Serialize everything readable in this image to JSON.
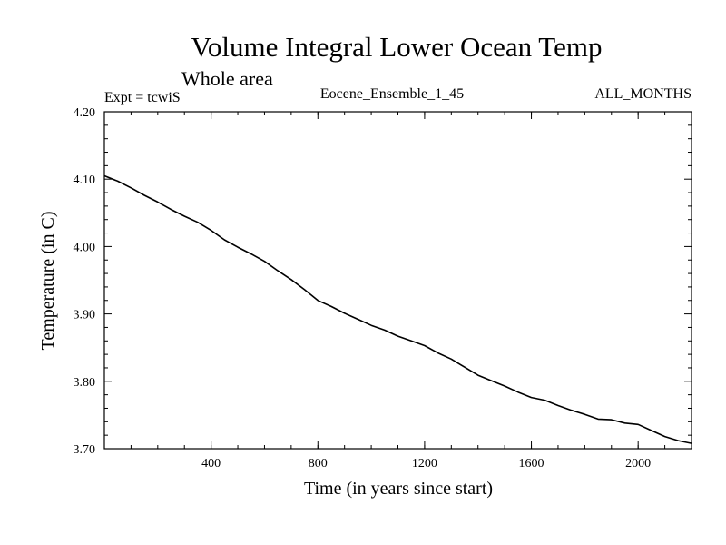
{
  "chart_data": {
    "type": "line",
    "title": "Volume Integral Lower Ocean Temp",
    "subtitle": "Whole area",
    "header_left": "Expt = tcwiS",
    "header_center": "Eocene_Ensemble_1_45",
    "header_right": "ALL_MONTHS",
    "xlabel": "Time (in years since start)",
    "ylabel": "Temperature (in C)",
    "xlim": [
      0,
      2200
    ],
    "ylim": [
      3.7,
      4.2
    ],
    "x_ticks": [
      400,
      800,
      1200,
      1600,
      2000
    ],
    "x_tick_labels": [
      "400",
      "800",
      "1200",
      "1600",
      "2000"
    ],
    "y_ticks": [
      3.7,
      3.8,
      3.9,
      4.0,
      4.1,
      4.2
    ],
    "y_tick_labels": [
      "3.70",
      "3.80",
      "3.90",
      "4.00",
      "4.10",
      "4.20"
    ],
    "grid": false,
    "series": [
      {
        "color": "#000000",
        "x": [
          0,
          50,
          100,
          150,
          200,
          250,
          300,
          350,
          400,
          450,
          500,
          550,
          600,
          650,
          700,
          750,
          800,
          850,
          900,
          950,
          1000,
          1050,
          1100,
          1150,
          1200,
          1250,
          1300,
          1350,
          1400,
          1450,
          1500,
          1550,
          1600,
          1650,
          1700,
          1750,
          1800,
          1850,
          1900,
          1950,
          2000,
          2050,
          2100,
          2150,
          2200
        ],
        "y": [
          4.105,
          4.097,
          4.087,
          4.076,
          4.066,
          4.055,
          4.045,
          4.036,
          4.024,
          4.01,
          3.999,
          3.989,
          3.978,
          3.964,
          3.951,
          3.936,
          3.92,
          3.911,
          3.901,
          3.892,
          3.883,
          3.876,
          3.867,
          3.86,
          3.853,
          3.842,
          3.833,
          3.821,
          3.809,
          3.801,
          3.793,
          3.784,
          3.776,
          3.772,
          3.764,
          3.757,
          3.751,
          3.744,
          3.743,
          3.738,
          3.736,
          3.727,
          3.718,
          3.712,
          3.708
        ]
      }
    ]
  }
}
